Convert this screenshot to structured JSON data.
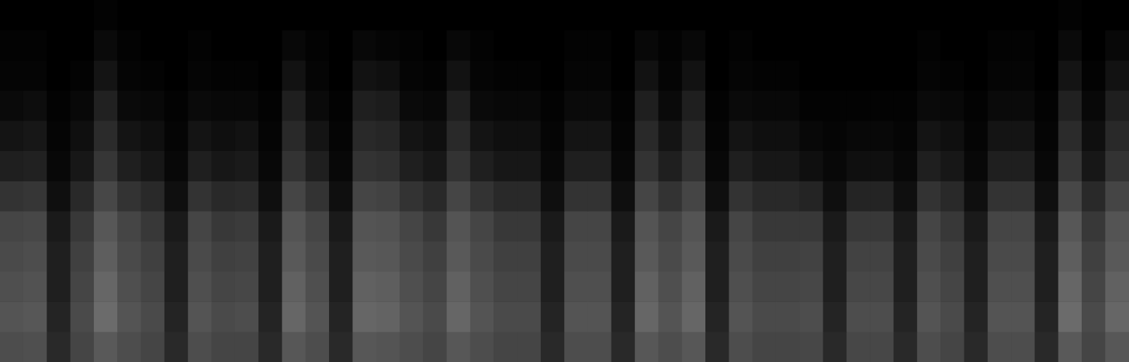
{
  "chart_data": {
    "type": "heatmap",
    "grid": false,
    "tick_labels": false,
    "color": "#ffffff",
    "cells": [
      [
        0,
        1,
        2,
        4,
        8,
        12,
        20,
        27,
        29,
        31,
        33,
        30
      ],
      [
        0,
        1,
        2,
        5,
        9,
        13,
        21,
        28,
        30,
        32,
        34,
        31
      ],
      [
        0,
        0,
        0,
        1,
        2,
        3,
        6,
        10,
        12,
        12,
        14,
        16
      ],
      [
        0,
        0,
        1,
        3,
        6,
        9,
        16,
        22,
        25,
        27,
        29,
        27
      ],
      [
        1,
        4,
        8,
        13,
        17,
        21,
        28,
        34,
        37,
        40,
        42,
        35
      ],
      [
        0,
        1,
        2,
        4,
        8,
        12,
        20,
        27,
        29,
        31,
        33,
        30
      ],
      [
        0,
        0,
        1,
        3,
        6,
        9,
        16,
        22,
        25,
        27,
        29,
        27
      ],
      [
        0,
        0,
        0,
        1,
        2,
        3,
        6,
        10,
        12,
        12,
        14,
        16
      ],
      [
        0,
        1,
        2,
        4,
        8,
        12,
        20,
        27,
        29,
        31,
        33,
        30
      ],
      [
        0,
        0,
        1,
        3,
        6,
        9,
        16,
        22,
        25,
        27,
        29,
        27
      ],
      [
        0,
        0,
        1,
        3,
        7,
        10,
        17,
        23,
        26,
        28,
        30,
        27
      ],
      [
        0,
        0,
        0,
        1,
        2,
        3,
        6,
        10,
        12,
        12,
        14,
        16
      ],
      [
        0,
        3,
        7,
        12,
        16,
        20,
        27,
        33,
        35,
        38,
        40,
        34
      ],
      [
        0,
        1,
        2,
        4,
        8,
        12,
        20,
        27,
        29,
        31,
        33,
        30
      ],
      [
        0,
        0,
        0,
        1,
        2,
        3,
        6,
        10,
        12,
        12,
        14,
        16
      ],
      [
        0,
        3,
        7,
        12,
        16,
        20,
        27,
        33,
        35,
        38,
        40,
        34
      ],
      [
        0,
        2,
        6,
        11,
        15,
        19,
        26,
        32,
        34,
        37,
        39,
        33
      ],
      [
        0,
        1,
        2,
        4,
        8,
        12,
        20,
        27,
        29,
        31,
        33,
        30
      ],
      [
        0,
        0,
        1,
        3,
        6,
        9,
        16,
        22,
        25,
        27,
        29,
        27
      ],
      [
        0,
        3,
        7,
        12,
        16,
        20,
        27,
        33,
        35,
        38,
        40,
        34
      ],
      [
        0,
        1,
        2,
        4,
        8,
        12,
        20,
        27,
        29,
        31,
        33,
        30
      ],
      [
        0,
        0,
        1,
        3,
        6,
        9,
        16,
        22,
        25,
        27,
        29,
        27
      ],
      [
        0,
        0,
        1,
        3,
        6,
        9,
        16,
        22,
        25,
        27,
        29,
        27
      ],
      [
        0,
        0,
        0,
        1,
        2,
        3,
        6,
        10,
        12,
        12,
        14,
        16
      ],
      [
        0,
        1,
        2,
        4,
        8,
        12,
        20,
        27,
        29,
        31,
        33,
        30
      ],
      [
        0,
        1,
        2,
        4,
        8,
        12,
        20,
        27,
        29,
        31,
        33,
        30
      ],
      [
        0,
        0,
        0,
        1,
        2,
        3,
        6,
        10,
        12,
        12,
        14,
        16
      ],
      [
        0,
        3,
        7,
        12,
        16,
        20,
        27,
        33,
        35,
        38,
        40,
        34
      ],
      [
        0,
        1,
        2,
        4,
        8,
        12,
        20,
        27,
        29,
        31,
        33,
        30
      ],
      [
        0,
        3,
        7,
        12,
        16,
        20,
        27,
        33,
        35,
        38,
        40,
        34
      ],
      [
        0,
        0,
        0,
        1,
        2,
        3,
        6,
        10,
        12,
        12,
        14,
        16
      ],
      [
        0,
        1,
        2,
        4,
        8,
        12,
        20,
        27,
        29,
        31,
        33,
        30
      ],
      [
        0,
        0,
        1,
        3,
        6,
        9,
        16,
        22,
        25,
        27,
        29,
        27
      ],
      [
        0,
        0,
        1,
        3,
        6,
        9,
        16,
        22,
        25,
        27,
        29,
        27
      ],
      [
        0,
        0,
        0,
        1,
        3,
        6,
        14,
        22,
        26,
        28,
        30,
        28
      ],
      [
        0,
        0,
        0,
        1,
        2,
        3,
        6,
        10,
        12,
        12,
        14,
        16
      ],
      [
        0,
        0,
        0,
        1,
        3,
        6,
        14,
        22,
        26,
        28,
        30,
        28
      ],
      [
        0,
        0,
        0,
        1,
        3,
        6,
        14,
        22,
        26,
        28,
        30,
        28
      ],
      [
        0,
        0,
        0,
        1,
        2,
        3,
        6,
        10,
        12,
        12,
        14,
        16
      ],
      [
        0,
        1,
        2,
        4,
        8,
        12,
        20,
        27,
        29,
        31,
        33,
        30
      ],
      [
        0,
        0,
        1,
        3,
        6,
        9,
        16,
        22,
        25,
        27,
        29,
        27
      ],
      [
        0,
        0,
        0,
        1,
        2,
        3,
        6,
        10,
        12,
        12,
        14,
        16
      ],
      [
        0,
        1,
        2,
        4,
        8,
        12,
        20,
        27,
        29,
        31,
        33,
        30
      ],
      [
        0,
        1,
        2,
        4,
        8,
        12,
        20,
        27,
        29,
        31,
        33,
        30
      ],
      [
        0,
        0,
        0,
        1,
        2,
        3,
        6,
        10,
        12,
        12,
        14,
        16
      ],
      [
        1,
        4,
        8,
        13,
        17,
        21,
        28,
        34,
        37,
        40,
        42,
        35
      ],
      [
        0,
        0,
        1,
        3,
        6,
        9,
        16,
        22,
        25,
        27,
        29,
        27
      ],
      [
        0,
        3,
        7,
        12,
        16,
        20,
        27,
        33,
        35,
        38,
        40,
        34
      ]
    ]
  }
}
